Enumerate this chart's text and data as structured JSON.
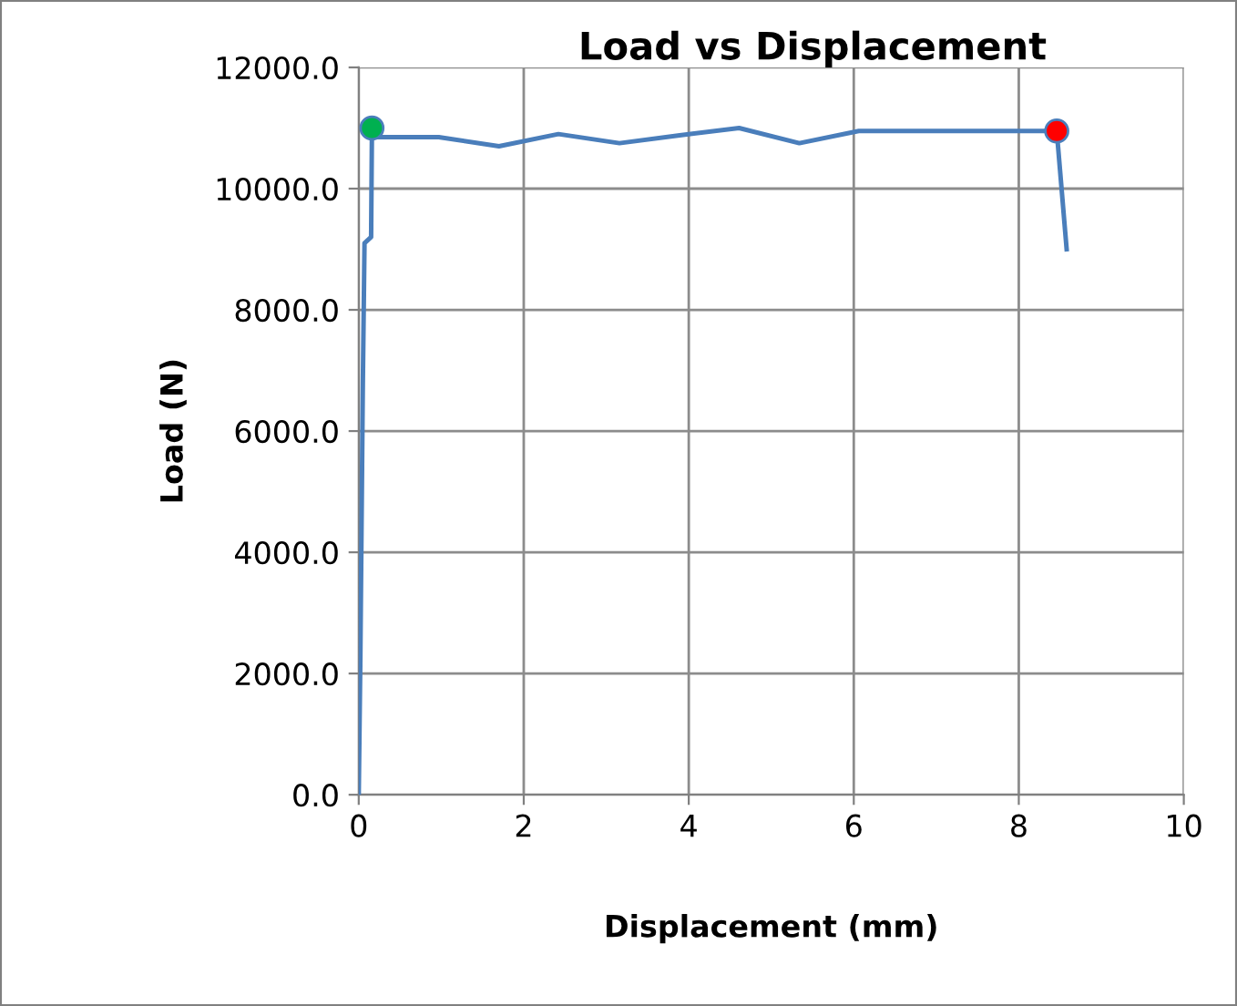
{
  "chart_data": {
    "type": "line",
    "title": "Load vs Displacement",
    "xlabel": "Displacement (mm)",
    "ylabel": "Load (N)",
    "xlim": [
      0,
      10
    ],
    "xticks": [
      0,
      2,
      4,
      6,
      8,
      10
    ],
    "ylim": [
      0,
      12000
    ],
    "yticks": [
      {
        "value": 0,
        "label": "0.0"
      },
      {
        "value": 2000,
        "label": "2000.0"
      },
      {
        "value": 4000,
        "label": "4000.0"
      },
      {
        "value": 6000,
        "label": "6000.0"
      },
      {
        "value": 8000,
        "label": "8000.0"
      },
      {
        "value": 10000,
        "label": "10000.0"
      },
      {
        "value": 12000,
        "label": "12000.0"
      }
    ],
    "grid": true,
    "legend": false,
    "series": [
      {
        "color": "#4a7ebb",
        "x": [
          0,
          0.02,
          0.05,
          0.07,
          0.15,
          0.16,
          0.18,
          0.97,
          1.7,
          2.42,
          3.16,
          3.89,
          4.61,
          5.34,
          6.06,
          8.46,
          8.58
        ],
        "values": [
          0,
          2300,
          6800,
          9100,
          9200,
          10950,
          10850,
          10850,
          10700,
          10900,
          10750,
          10880,
          11000,
          10750,
          10950,
          10950,
          9000
        ]
      },
      {
        "type": "scatter",
        "color": "#00b050",
        "x": [
          0.16
        ],
        "values": [
          11000
        ],
        "marker": "circle"
      },
      {
        "type": "scatter",
        "color": "#ff0000",
        "x": [
          8.46
        ],
        "values": [
          10950
        ],
        "marker": "circle"
      }
    ]
  }
}
